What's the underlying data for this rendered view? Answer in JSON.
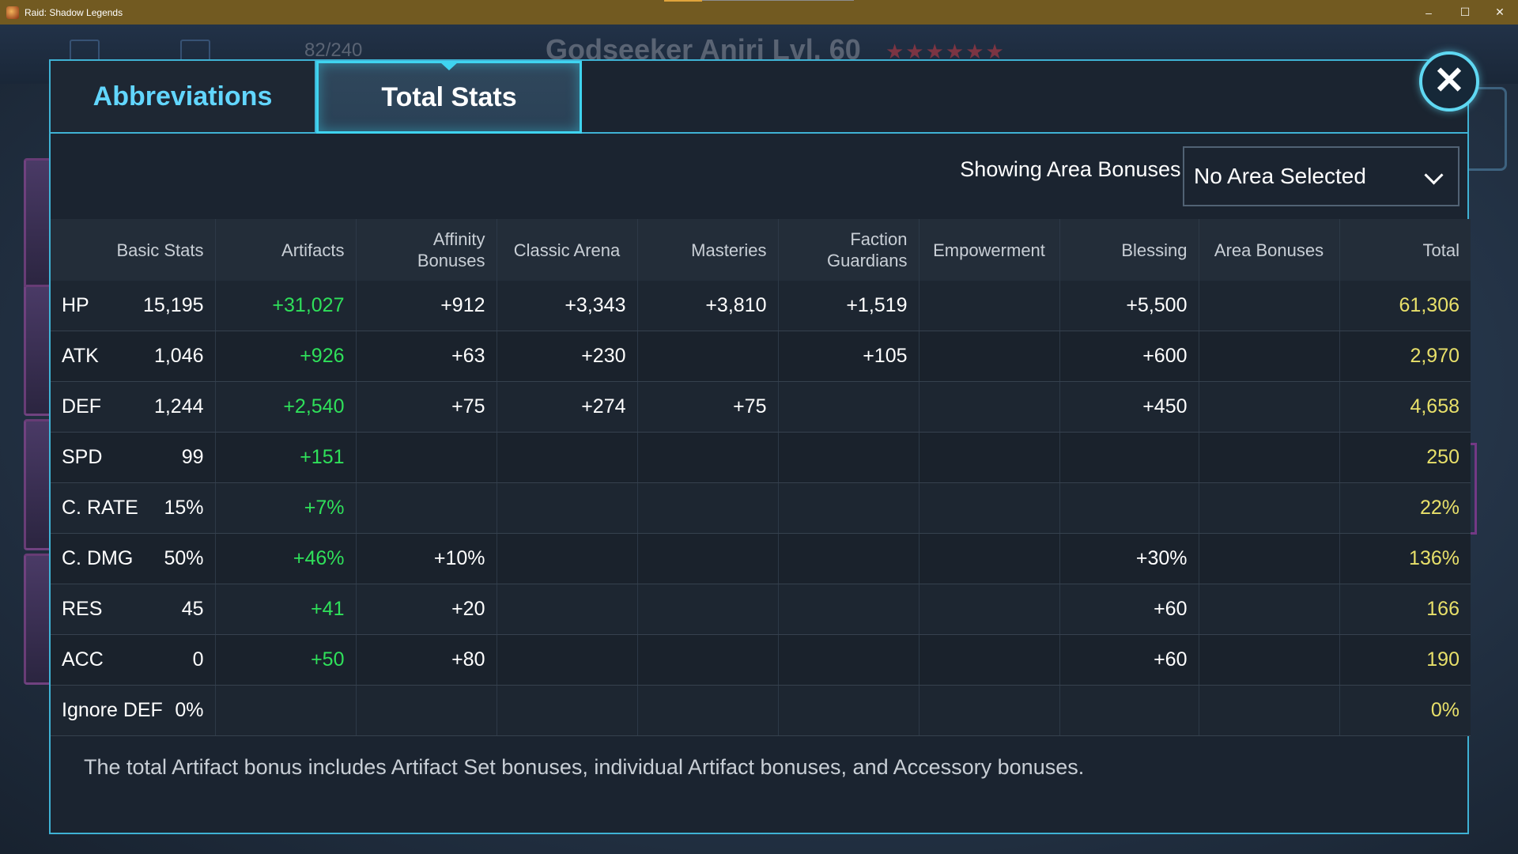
{
  "window": {
    "title": "Raid: Shadow Legends",
    "minimize": "–",
    "maximize": "☐",
    "close": "✕"
  },
  "background": {
    "counter": "82/240",
    "hero_name": "Godseeker Aniri Lvl. 60",
    "stars": "★★★★★★"
  },
  "dialog": {
    "tabs": [
      {
        "label": "Abbreviations"
      },
      {
        "label": "Total Stats"
      }
    ],
    "close_label": "✕",
    "area": {
      "label": "Showing Area Bonuses for:",
      "selected": "No Area Selected"
    },
    "table": {
      "headers": [
        "Basic Stats",
        "Artifacts",
        "Affinity Bonuses",
        "Classic Arena",
        "Masteries",
        "Faction Guardians",
        "Empowerment",
        "Blessing",
        "Area Bonuses",
        "Total"
      ],
      "rows": [
        {
          "stat": "HP",
          "basic": "15,195",
          "artifacts": "+31,027",
          "affinity": "+912",
          "arena": "+3,343",
          "masteries": "+3,810",
          "faction": "+1,519",
          "empowerment": "",
          "blessing": "+5,500",
          "area": "",
          "total": "61,306"
        },
        {
          "stat": "ATK",
          "basic": "1,046",
          "artifacts": "+926",
          "affinity": "+63",
          "arena": "+230",
          "masteries": "",
          "faction": "+105",
          "empowerment": "",
          "blessing": "+600",
          "area": "",
          "total": "2,970"
        },
        {
          "stat": "DEF",
          "basic": "1,244",
          "artifacts": "+2,540",
          "affinity": "+75",
          "arena": "+274",
          "masteries": "+75",
          "faction": "",
          "empowerment": "",
          "blessing": "+450",
          "area": "",
          "total": "4,658"
        },
        {
          "stat": "SPD",
          "basic": "99",
          "artifacts": "+151",
          "affinity": "",
          "arena": "",
          "masteries": "",
          "faction": "",
          "empowerment": "",
          "blessing": "",
          "area": "",
          "total": "250"
        },
        {
          "stat": "C. RATE",
          "basic": "15%",
          "artifacts": "+7%",
          "affinity": "",
          "arena": "",
          "masteries": "",
          "faction": "",
          "empowerment": "",
          "blessing": "",
          "area": "",
          "total": "22%"
        },
        {
          "stat": "C. DMG",
          "basic": "50%",
          "artifacts": "+46%",
          "affinity": "+10%",
          "arena": "",
          "masteries": "",
          "faction": "",
          "empowerment": "",
          "blessing": "+30%",
          "area": "",
          "total": "136%"
        },
        {
          "stat": "RES",
          "basic": "45",
          "artifacts": "+41",
          "affinity": "+20",
          "arena": "",
          "masteries": "",
          "faction": "",
          "empowerment": "",
          "blessing": "+60",
          "area": "",
          "total": "166"
        },
        {
          "stat": "ACC",
          "basic": "0",
          "artifacts": "+50",
          "affinity": "+80",
          "arena": "",
          "masteries": "",
          "faction": "",
          "empowerment": "",
          "blessing": "+60",
          "area": "",
          "total": "190"
        },
        {
          "stat": "Ignore DEF",
          "basic": "0%",
          "artifacts": "",
          "affinity": "",
          "arena": "",
          "masteries": "",
          "faction": "",
          "empowerment": "",
          "blessing": "",
          "area": "",
          "total": "0%"
        }
      ]
    },
    "footnote": "The total Artifact bonus includes Artifact Set bonuses, individual Artifact bonuses, and Accessory bonuses."
  },
  "colors": {
    "accent": "#3fb2d4",
    "artifact_green": "#2fe05a",
    "total_yellow": "#e8e06a",
    "titlebar": "#725a21"
  }
}
